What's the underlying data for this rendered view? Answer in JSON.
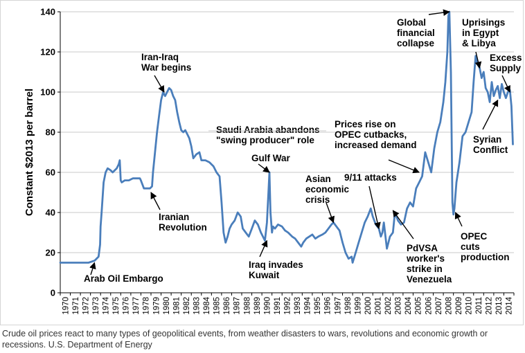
{
  "colors": {
    "line": "#4A7EBB",
    "grid": "#c9c9c9",
    "axis": "#000000",
    "text": "#000000"
  },
  "caption": {
    "text": "Crude oil prices react to many types of geopolitical events, from weather disasters to wars, revolutions and economic growth or recessions.",
    "source": "U.S. Department of Energy"
  },
  "chart_data": {
    "type": "line",
    "title": "",
    "xlabel": "",
    "ylabel": "Constant $2013 per barrel",
    "ylim": [
      0,
      140
    ],
    "xlim": [
      1970,
      2015
    ],
    "grid": true,
    "yticks": [
      0,
      20,
      40,
      60,
      80,
      100,
      120,
      140
    ],
    "ytick_labels": [
      "0",
      "20",
      "40",
      "60",
      "80",
      "100",
      "120",
      "140"
    ],
    "xtick_labels": [
      "1970",
      "1971",
      "1972",
      "1973",
      "1974",
      "1975",
      "1976",
      "1977",
      "1978",
      "1979",
      "1980",
      "1981",
      "1982",
      "1983",
      "1984",
      "1985",
      "1986",
      "1987",
      "1988",
      "1989",
      "1990",
      "1991",
      "1992",
      "1993",
      "1994",
      "1995",
      "1996",
      "1997",
      "1998",
      "1999",
      "2000",
      "2001",
      "2002",
      "2003",
      "2004",
      "2005",
      "2006",
      "2007",
      "2008",
      "2009",
      "2010",
      "2011",
      "2012",
      "2013",
      "2014"
    ],
    "series": [
      {
        "name": "Crude oil price (constant $2013)",
        "x": [
          1970.0,
          1971.0,
          1972.0,
          1972.8,
          1973.4,
          1973.6,
          1973.8,
          1973.95,
          1974.0,
          1974.1,
          1974.3,
          1974.5,
          1974.7,
          1975.0,
          1975.2,
          1975.4,
          1975.6,
          1975.8,
          1975.9,
          1976.0,
          1976.1,
          1976.4,
          1976.8,
          1977.2,
          1977.6,
          1977.9,
          1978.0,
          1978.3,
          1978.6,
          1978.9,
          1979.1,
          1979.2,
          1979.4,
          1979.6,
          1979.8,
          1980.0,
          1980.2,
          1980.4,
          1980.6,
          1980.8,
          1981.0,
          1981.2,
          1981.4,
          1981.6,
          1981.8,
          1982.0,
          1982.2,
          1982.4,
          1982.6,
          1982.8,
          1983.0,
          1983.2,
          1983.5,
          1983.8,
          1984.0,
          1984.4,
          1984.8,
          1985.2,
          1985.5,
          1985.8,
          1986.0,
          1986.2,
          1986.4,
          1986.6,
          1986.8,
          1987.0,
          1987.3,
          1987.6,
          1987.9,
          1988.1,
          1988.4,
          1988.7,
          1989.0,
          1989.3,
          1989.6,
          1989.9,
          1990.1,
          1990.3,
          1990.5,
          1990.65,
          1990.75,
          1990.85,
          1991.0,
          1991.1,
          1991.3,
          1991.6,
          1992.0,
          1992.3,
          1992.6,
          1993.0,
          1993.3,
          1993.6,
          1993.9,
          1994.1,
          1994.4,
          1994.7,
          1995.0,
          1995.3,
          1995.6,
          1996.0,
          1996.3,
          1996.6,
          1996.9,
          1997.1,
          1997.4,
          1997.7,
          1998.0,
          1998.3,
          1998.6,
          1998.9,
          1999.0,
          1999.3,
          1999.6,
          1999.9,
          2000.2,
          2000.5,
          2000.8,
          2001.0,
          2001.3,
          2001.6,
          2001.8,
          2001.95,
          2002.1,
          2002.4,
          2002.7,
          2003.0,
          2003.2,
          2003.5,
          2003.8,
          2004.1,
          2004.4,
          2004.7,
          2005.0,
          2005.3,
          2005.6,
          2005.9,
          2006.2,
          2006.5,
          2006.8,
          2007.1,
          2007.4,
          2007.7,
          2008.0,
          2008.2,
          2008.4,
          2008.5,
          2008.6,
          2008.75,
          2008.9,
          2009.0,
          2009.1,
          2009.3,
          2009.6,
          2009.9,
          2010.2,
          2010.5,
          2010.8,
          2011.0,
          2011.2,
          2011.4,
          2011.6,
          2011.8,
          2012.0,
          2012.2,
          2012.4,
          2012.6,
          2012.8,
          2013.0,
          2013.2,
          2013.4,
          2013.6,
          2013.8,
          2014.0,
          2014.2,
          2014.4,
          2014.6,
          2014.75,
          2014.9
        ],
        "values": [
          15,
          15,
          15,
          15,
          16,
          17,
          18,
          24,
          33,
          40,
          55,
          60,
          62,
          61,
          60,
          61,
          62,
          64,
          66,
          56,
          55,
          56,
          56,
          57,
          57,
          57,
          56,
          52,
          52,
          52,
          53,
          60,
          70,
          80,
          88,
          96,
          100,
          98,
          100,
          102,
          101,
          98,
          96,
          90,
          85,
          81,
          80,
          81,
          79,
          77,
          73,
          67,
          69,
          70,
          66,
          66,
          65,
          63,
          60,
          58,
          45,
          30,
          25,
          28,
          32,
          34,
          36,
          40,
          38,
          32,
          30,
          28,
          32,
          36,
          34,
          30,
          28,
          26,
          35,
          50,
          60,
          40,
          30,
          33,
          32,
          34,
          33,
          31,
          30,
          28,
          27,
          25,
          23,
          25,
          27,
          28,
          29,
          27,
          28,
          29,
          30,
          32,
          34,
          35,
          33,
          31,
          25,
          20,
          17,
          18,
          15,
          20,
          25,
          30,
          35,
          38,
          42,
          38,
          34,
          32,
          28,
          30,
          35,
          22,
          28,
          30,
          40,
          36,
          34,
          35,
          42,
          45,
          43,
          52,
          55,
          58,
          70,
          65,
          60,
          72,
          80,
          85,
          95,
          105,
          120,
          138,
          140,
          110,
          45,
          39,
          42,
          55,
          65,
          78,
          80,
          85,
          90,
          105,
          118,
          114,
          112,
          107,
          110,
          102,
          100,
          95,
          105,
          98,
          101,
          103,
          97,
          104,
          100,
          97,
          100,
          101,
          93,
          74
        ]
      }
    ],
    "annotations": [
      {
        "lines": [
          "Arab Oil Embargo"
        ],
        "year": 1973.4,
        "value": 15
      },
      {
        "lines": [
          "Iranian",
          "Revolution"
        ],
        "year": 1979.0,
        "value": 50
      },
      {
        "lines": [
          "Iran-Iraq",
          "War begins"
        ],
        "year": 1980.3,
        "value": 100
      },
      {
        "lines": [
          "Saudi Arabia abandons",
          "\"swing producer\" role"
        ],
        "year": 1985.8,
        "value": 75
      },
      {
        "lines": [
          "Gulf War"
        ],
        "year": 1990.75,
        "value": 60
      },
      {
        "lines": [
          "Iraq invades",
          "Kuwait"
        ],
        "year": 1990.5,
        "value": 26
      },
      {
        "lines": [
          "Asian",
          "economic",
          "crisis"
        ],
        "year": 1997.1,
        "value": 35
      },
      {
        "lines": [
          "9/11 attacks"
        ],
        "year": 2001.6,
        "value": 32
      },
      {
        "lines": [
          "PdVSA",
          "worker's",
          "strike in",
          "Venezuela"
        ],
        "year": 2003.0,
        "value": 41
      },
      {
        "lines": [
          "Prices rise on",
          "OPEC cutbacks,",
          "increased demand"
        ],
        "year": 2005.6,
        "value": 60
      },
      {
        "lines": [
          "Global",
          "financial",
          "collapse"
        ],
        "year": 2008.6,
        "value": 140
      },
      {
        "lines": [
          "OPEC",
          "cuts",
          "production"
        ],
        "year": 2009.2,
        "value": 40
      },
      {
        "lines": [
          "Uprisings",
          "in Egypt",
          "& Libya"
        ],
        "year": 2011.6,
        "value": 112
      },
      {
        "lines": [
          "Syrian",
          "Conflict"
        ],
        "year": 2013.4,
        "value": 96
      },
      {
        "lines": [
          "Excess",
          "Supply"
        ],
        "year": 2014.6,
        "value": 100
      }
    ]
  }
}
